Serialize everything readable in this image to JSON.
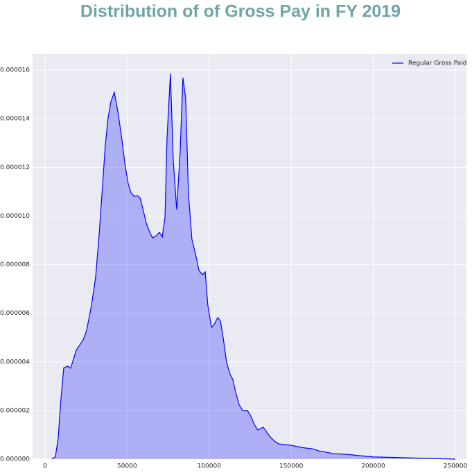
{
  "chart_data": {
    "type": "area",
    "title": "Distribution of of Gross Pay in FY 2019",
    "x": [
      4200,
      6300,
      8000,
      9700,
      11400,
      13900,
      15600,
      19000,
      23200,
      25300,
      28300,
      30800,
      32900,
      35100,
      36700,
      38400,
      40100,
      42200,
      44300,
      46500,
      48600,
      50700,
      52400,
      54500,
      56200,
      57900,
      59500,
      61700,
      63800,
      65500,
      67600,
      69700,
      71400,
      73100,
      74300,
      76400,
      78100,
      80200,
      82300,
      84000,
      85700,
      87400,
      89500,
      91600,
      93800,
      95900,
      97600,
      99200,
      101400,
      103000,
      105200,
      106800,
      108500,
      110600,
      112800,
      114400,
      116100,
      118200,
      120400,
      123300,
      125400,
      127500,
      129600,
      133000,
      135100,
      137200,
      139800,
      142300,
      145700,
      149900,
      154100,
      158400,
      162600,
      166800,
      171000,
      175200,
      183700,
      192100,
      200600,
      217500,
      234400,
      250000
    ],
    "series": [
      {
        "name": "Regular Gross Paid",
        "color": "#0000ff",
        "values": [
          0,
          1e-07,
          8.6e-07,
          2.48e-06,
          3.76e-06,
          3.82e-06,
          3.74e-06,
          4.48e-06,
          4.9e-06,
          5.28e-06,
          6.33e-06,
          7.47e-06,
          9.18e-06,
          1.132e-05,
          1.29e-05,
          1.403e-05,
          1.469e-05,
          1.509e-05,
          1.432e-05,
          1.332e-05,
          1.218e-05,
          1.132e-05,
          1.095e-05,
          1.081e-05,
          1.084e-05,
          1.075e-05,
          1.033e-05,
          9.7e-06,
          9.33e-06,
          9.1e-06,
          9.18e-06,
          9.33e-06,
          9.13e-06,
          9.95e-06,
          1.318e-05,
          1.586e-05,
          1.232e-05,
          1.027e-05,
          1.261e-05,
          1.569e-05,
          1.483e-05,
          1.09e-05,
          9.04e-06,
          8.47e-06,
          7.76e-06,
          7.59e-06,
          7.7e-06,
          6.33e-06,
          5.42e-06,
          5.53e-06,
          5.82e-06,
          5.7e-06,
          5.02e-06,
          3.99e-06,
          3.48e-06,
          3.28e-06,
          2.77e-06,
          2.25e-06,
          2e-06,
          2e-06,
          1.77e-06,
          1.43e-06,
          1.2e-06,
          1.31e-06,
          1.11e-06,
          9.1e-07,
          7.4e-07,
          6.3e-07,
          6e-07,
          5.7e-07,
          5.1e-07,
          4.6e-07,
          4.3e-07,
          3.4e-07,
          2.9e-07,
          2.3e-07,
          2e-07,
          1.4e-07,
          9e-08,
          6e-08,
          3e-08,
          0
        ]
      }
    ],
    "xlim": [
      -7600,
      256800
    ],
    "xticks": [
      0,
      50000,
      100000,
      150000,
      200000,
      250000
    ],
    "ylim": [
      0,
      1.666e-05
    ],
    "yticks": [
      {
        "value": 0,
        "label": "0.000000"
      },
      {
        "value": 2e-06,
        "label": "0.000002"
      },
      {
        "value": 4e-06,
        "label": "0.000004"
      },
      {
        "value": 6e-06,
        "label": "0.000006"
      },
      {
        "value": 8e-06,
        "label": "0.000008"
      },
      {
        "value": 1e-05,
        "label": "0.000010"
      },
      {
        "value": 1.2e-05,
        "label": "0.000012"
      },
      {
        "value": 1.4e-05,
        "label": "0.000014"
      },
      {
        "value": 1.6e-05,
        "label": "0.000016"
      }
    ],
    "grid": true,
    "legend": "upper right"
  }
}
